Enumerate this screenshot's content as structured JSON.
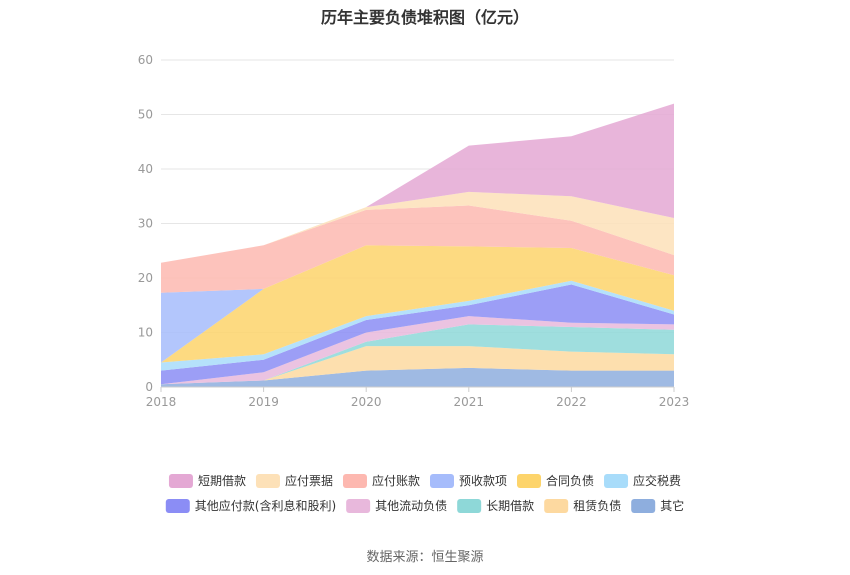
{
  "chart_data": {
    "type": "area",
    "stacked": true,
    "title": "历年主要负债堆积图（亿元）",
    "categories": [
      "2018",
      "2019",
      "2020",
      "2021",
      "2022",
      "2023"
    ],
    "ylim": [
      0,
      60
    ],
    "yticks": [
      0,
      10,
      20,
      30,
      40,
      50,
      60
    ],
    "grid": true,
    "legend_position": "bottom",
    "series": [
      {
        "name": "其它",
        "color": "#8eaede",
        "values": [
          0.5,
          1.2,
          3.0,
          3.5,
          3.0,
          3.0
        ]
      },
      {
        "name": "租赁负债",
        "color": "#fdd9a0",
        "values": [
          0,
          0,
          4.5,
          4.0,
          3.5,
          3.0
        ]
      },
      {
        "name": "长期借款",
        "color": "#8ed8d8",
        "values": [
          0,
          0,
          0.8,
          4.0,
          4.5,
          4.5
        ]
      },
      {
        "name": "其他流动负债",
        "color": "#e8b8dc",
        "values": [
          0,
          1.5,
          1.7,
          1.5,
          0.8,
          1.0
        ]
      },
      {
        "name": "其他应付款(含利息和股利)",
        "color": "#8b8df5",
        "values": [
          2.5,
          2.3,
          2.3,
          2.0,
          7.0,
          1.8
        ]
      },
      {
        "name": "应交税费",
        "color": "#a8dcfa",
        "values": [
          1.5,
          1.0,
          0.7,
          0.8,
          0.7,
          0.7
        ]
      },
      {
        "name": "合同负债",
        "color": "#fdd46b",
        "values": [
          0,
          12.0,
          13.0,
          10.0,
          6.0,
          6.5
        ]
      },
      {
        "name": "预收款项",
        "color": "#a6bcfb",
        "values": [
          12.8,
          0,
          0,
          0,
          0,
          0
        ]
      },
      {
        "name": "应付账款",
        "color": "#fdb8b0",
        "values": [
          5.5,
          8.0,
          6.5,
          7.5,
          5.0,
          3.7
        ]
      },
      {
        "name": "应付票据",
        "color": "#fde1b8",
        "values": [
          0,
          0,
          0.5,
          2.5,
          4.5,
          6.8
        ]
      },
      {
        "name": "短期借款",
        "color": "#e4a8d4",
        "values": [
          0,
          0,
          0,
          8.5,
          11.0,
          21.0
        ]
      }
    ],
    "legend_order": [
      "短期借款",
      "应付票据",
      "应付账款",
      "预收款项",
      "合同负债",
      "应交税费",
      "其他应付款(含利息和股利)",
      "其他流动负债",
      "长期借款",
      "租赁负债",
      "其它"
    ]
  },
  "source_text": "数据来源：恒生聚源"
}
